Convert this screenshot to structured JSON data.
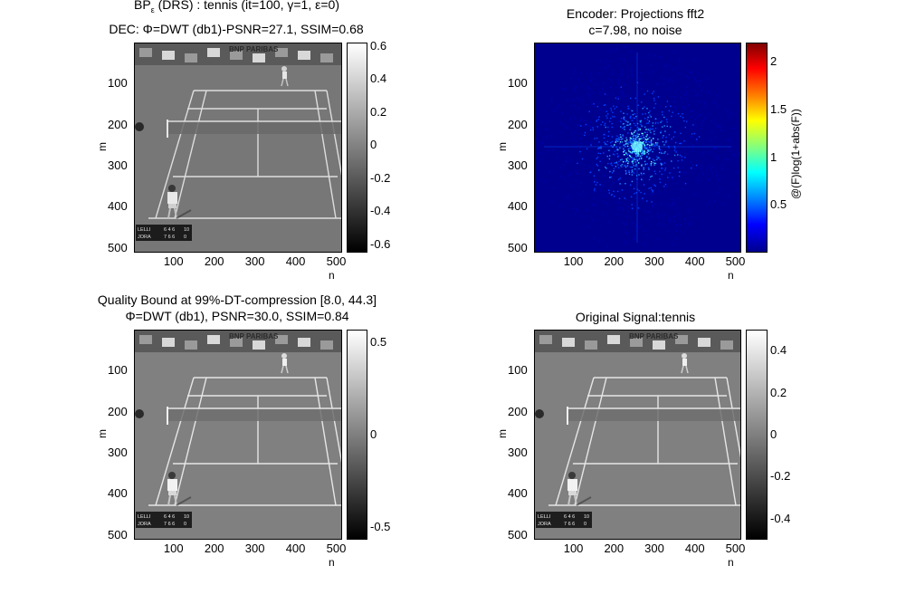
{
  "chart_data": [
    {
      "type": "heatmap",
      "title_lines": [
        "BPε (DRS) : tennis (it=100, γ=1, ε=0)",
        "DEC: Φ=DWT (db1)-PSNR=27.1, SSIM=0.68"
      ],
      "xlabel": "n",
      "ylabel": "m",
      "xticks": [
        "100",
        "200",
        "300",
        "400",
        "500"
      ],
      "yticks": [
        "100",
        "200",
        "300",
        "400",
        "500"
      ],
      "colorbar": {
        "ticks": [
          "0.6",
          "0.4",
          "0.2",
          "0",
          "-0.2",
          "-0.4",
          "-0.6"
        ],
        "range": [
          -0.65,
          0.62
        ],
        "colormap": "gray"
      }
    },
    {
      "type": "heatmap",
      "title_lines": [
        "Encoder: Projections fft2",
        "c=7.98, no noise"
      ],
      "xlabel": "n",
      "ylabel": "m",
      "xticks": [
        "100",
        "200",
        "300",
        "400",
        "500"
      ],
      "yticks": [
        "100",
        "200",
        "300",
        "400",
        "500"
      ],
      "colorbar": {
        "ticks": [
          "2",
          "1.5",
          "1",
          "0.5"
        ],
        "range": [
          0,
          2.2
        ],
        "colormap": "jet",
        "label": "@(F)log(1+abs(F))"
      }
    },
    {
      "type": "heatmap",
      "title_lines": [
        "Quality Bound at 99%-DT-compression [8.0, 44.3]",
        "Φ=DWT (db1), PSNR=30.0, SSIM=0.84"
      ],
      "xlabel": "n",
      "ylabel": "m",
      "xticks": [
        "100",
        "200",
        "300",
        "400",
        "500"
      ],
      "yticks": [
        "100",
        "200",
        "300",
        "400",
        "500"
      ],
      "colorbar": {
        "ticks": [
          "0.5",
          "0",
          "-0.5"
        ],
        "range": [
          -0.57,
          0.57
        ],
        "colormap": "gray"
      }
    },
    {
      "type": "heatmap",
      "title_lines": [
        "Original Signal:tennis"
      ],
      "xlabel": "n",
      "ylabel": "m",
      "xticks": [
        "100",
        "200",
        "300",
        "400",
        "500"
      ],
      "yticks": [
        "100",
        "200",
        "300",
        "400",
        "500"
      ],
      "colorbar": {
        "ticks": [
          "0.4",
          "0.2",
          "0",
          "-0.2",
          "-0.4"
        ],
        "range": [
          -0.5,
          0.5
        ],
        "colormap": "gray"
      }
    }
  ],
  "scoreboard": {
    "row1_name": "LELLI",
    "row1_score": "6 4 6",
    "row1_game": "10",
    "row2_name": "JORA",
    "row2_score": "7 6 6",
    "row2_game": "0"
  },
  "banner_text": "BNP PARIBAS"
}
